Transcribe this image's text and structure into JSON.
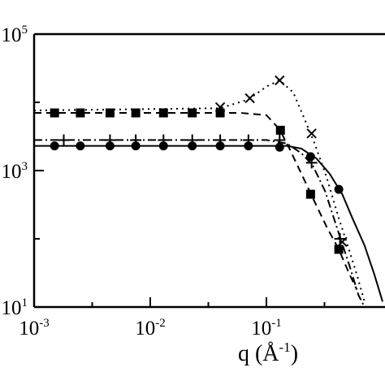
{
  "chart_data": {
    "type": "scatter",
    "title": "",
    "xlabel": {
      "base": "q (Å",
      "exp": "-1",
      "close": ")"
    },
    "ylabel": "",
    "x_scale": "log",
    "y_scale": "log",
    "xlim": [
      0.001,
      1.0
    ],
    "ylim": [
      10,
      100000
    ],
    "grid": false,
    "x_ticks": [
      {
        "value": 0.001,
        "base": "10",
        "exp": "-3"
      },
      {
        "value": 0.01,
        "base": "10",
        "exp": "-2"
      },
      {
        "value": 0.1,
        "base": "10",
        "exp": "-1"
      }
    ],
    "y_ticks": [
      {
        "value": 10,
        "base": "10",
        "exp": "1"
      },
      {
        "value": 1000,
        "base": "10",
        "exp": "3"
      },
      {
        "value": 100000,
        "base": "10",
        "exp": "5"
      }
    ],
    "series": [
      {
        "marker": "square",
        "line": "dashed",
        "points": [
          [
            0.0015,
            7000
          ],
          [
            0.0025,
            7000
          ],
          [
            0.0045,
            7000
          ],
          [
            0.0075,
            7000
          ],
          [
            0.013,
            7000
          ],
          [
            0.023,
            7000
          ],
          [
            0.04,
            7000
          ],
          [
            0.132,
            3900
          ],
          [
            0.24,
            450
          ],
          [
            0.42,
            70
          ]
        ],
        "curve": [
          [
            0.001,
            7000
          ],
          [
            0.06,
            7000
          ],
          [
            0.1,
            6500
          ],
          [
            0.13,
            4000
          ],
          [
            0.16,
            2000
          ],
          [
            0.2,
            900
          ],
          [
            0.26,
            350
          ],
          [
            0.33,
            150
          ],
          [
            0.42,
            70
          ],
          [
            0.52,
            30
          ],
          [
            0.6,
            18
          ]
        ]
      },
      {
        "marker": "x",
        "line": "dotted",
        "points": [
          [
            0.04,
            8500
          ],
          [
            0.072,
            11500
          ],
          [
            0.13,
            21000
          ],
          [
            0.245,
            3500
          ],
          [
            0.45,
            90
          ]
        ],
        "curve": [
          [
            0.001,
            7600
          ],
          [
            0.04,
            8200
          ],
          [
            0.07,
            11000
          ],
          [
            0.1,
            17000
          ],
          [
            0.13,
            21000
          ],
          [
            0.17,
            14000
          ],
          [
            0.21,
            6000
          ],
          [
            0.26,
            2500
          ],
          [
            0.33,
            800
          ],
          [
            0.42,
            200
          ],
          [
            0.5,
            80
          ],
          [
            0.6,
            30
          ],
          [
            0.7,
            12
          ]
        ]
      },
      {
        "marker": "plus",
        "line": "dash-dot",
        "points": [
          [
            0.0018,
            2800
          ],
          [
            0.0045,
            2800
          ],
          [
            0.0075,
            2800
          ],
          [
            0.013,
            2800
          ],
          [
            0.023,
            2800
          ],
          [
            0.04,
            2800
          ],
          [
            0.07,
            2800
          ],
          [
            0.13,
            2800
          ],
          [
            0.245,
            1300
          ],
          [
            0.43,
            100
          ]
        ],
        "curve": [
          [
            0.001,
            2800
          ],
          [
            0.1,
            2800
          ],
          [
            0.15,
            2500
          ],
          [
            0.2,
            1800
          ],
          [
            0.25,
            1200
          ],
          [
            0.32,
            500
          ],
          [
            0.42,
            120
          ],
          [
            0.52,
            40
          ],
          [
            0.62,
            15
          ],
          [
            0.7,
            10
          ]
        ]
      },
      {
        "marker": "circle",
        "line": "solid",
        "points": [
          [
            0.0015,
            2300
          ],
          [
            0.0025,
            2300
          ],
          [
            0.0045,
            2300
          ],
          [
            0.0075,
            2300
          ],
          [
            0.013,
            2300
          ],
          [
            0.023,
            2300
          ],
          [
            0.04,
            2300
          ],
          [
            0.07,
            2300
          ],
          [
            0.13,
            2200
          ],
          [
            0.24,
            1600
          ],
          [
            0.42,
            530
          ]
        ],
        "curve": [
          [
            0.001,
            2300
          ],
          [
            0.15,
            2300
          ],
          [
            0.2,
            2100
          ],
          [
            0.27,
            1500
          ],
          [
            0.35,
            900
          ],
          [
            0.45,
            450
          ],
          [
            0.55,
            200
          ],
          [
            0.7,
            80
          ],
          [
            0.85,
            30
          ],
          [
            1.0,
            12
          ]
        ]
      }
    ]
  }
}
